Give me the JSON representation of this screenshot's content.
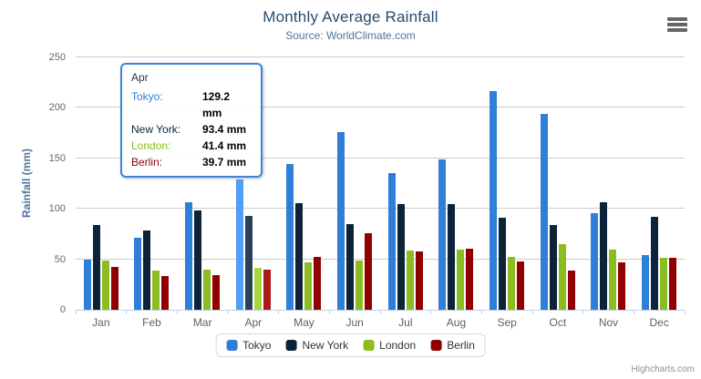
{
  "chart_data": {
    "type": "bar",
    "title": "Monthly Average Rainfall",
    "subtitle": "Source: WorldClimate.com",
    "xlabel": "",
    "ylabel": "Rainfall (mm)",
    "ylim": [
      0,
      250
    ],
    "ytick_interval": 50,
    "grid": true,
    "legend_position": "bottom",
    "categories": [
      "Jan",
      "Feb",
      "Mar",
      "Apr",
      "May",
      "Jun",
      "Jul",
      "Aug",
      "Sep",
      "Oct",
      "Nov",
      "Dec"
    ],
    "highlighted_category": "Apr",
    "series": [
      {
        "name": "Tokyo",
        "color": "#2f7ed8",
        "hover_color": "#4f9ef8",
        "values": [
          49.9,
          71.5,
          106.4,
          129.2,
          144.0,
          176.0,
          135.6,
          148.5,
          216.4,
          194.1,
          95.6,
          54.4
        ]
      },
      {
        "name": "New York",
        "color": "#0d233a",
        "hover_color": "#28425a",
        "values": [
          83.6,
          78.8,
          98.5,
          93.4,
          106.0,
          84.5,
          105.0,
          104.3,
          91.2,
          83.5,
          106.6,
          92.3
        ]
      },
      {
        "name": "London",
        "color": "#8bbc21",
        "hover_color": "#a5d63b",
        "values": [
          48.9,
          38.8,
          39.3,
          41.4,
          47.0,
          48.3,
          59.0,
          59.6,
          52.4,
          65.2,
          59.3,
          51.2
        ]
      },
      {
        "name": "Berlin",
        "color": "#910000",
        "hover_color": "#ab1a1a",
        "values": [
          42.4,
          33.2,
          34.5,
          39.7,
          52.6,
          75.5,
          57.4,
          60.4,
          47.6,
          39.1,
          46.8,
          51.1
        ]
      }
    ]
  },
  "tooltip": {
    "header": "Apr",
    "rows": [
      {
        "label": "Tokyo:",
        "value": "129.2 mm",
        "color": "#2f7ed8"
      },
      {
        "label": "New York:",
        "value": "93.4 mm",
        "color": "#0d233a"
      },
      {
        "label": "London:",
        "value": "41.4 mm",
        "color": "#8bbc21"
      },
      {
        "label": "Berlin:",
        "value": "39.7 mm",
        "color": "#910000"
      }
    ]
  },
  "icons": {
    "menu": "hamburger-icon"
  },
  "credit": "Highcharts.com"
}
